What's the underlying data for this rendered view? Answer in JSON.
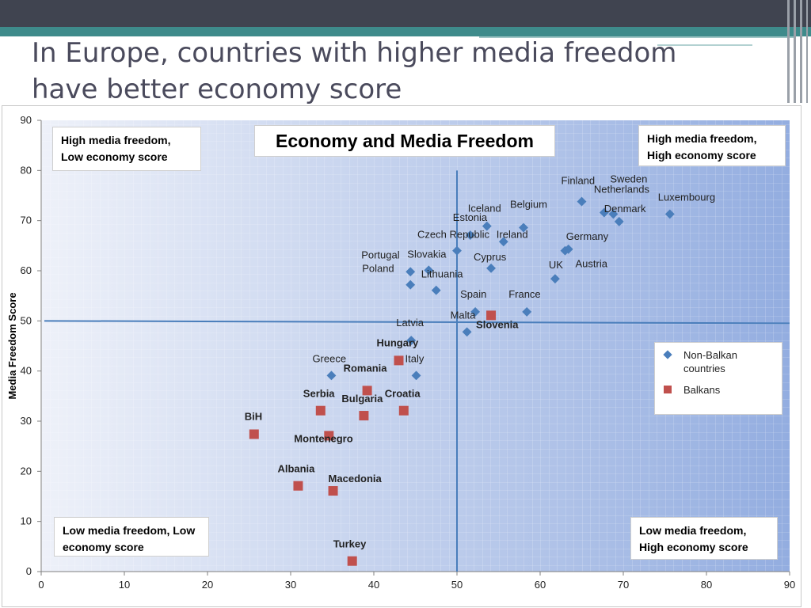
{
  "slide": {
    "title": "In Europe, countries with higher media freedom have better economy score"
  },
  "colors": {
    "non_balkan": "#4a7ebb",
    "balkan": "#c0504d",
    "quadrant_lines": "#4a7ebb",
    "plot_bg_left": "#eef1f9",
    "plot_bg_right": "#93ade0"
  },
  "chart_data": {
    "type": "scatter",
    "title": "Economy and Media Freedom",
    "xlabel": "",
    "ylabel": "Media Freedom Score",
    "xlim": [
      0,
      90
    ],
    "ylim": [
      0,
      90
    ],
    "xticks": [
      0,
      10,
      20,
      30,
      40,
      50,
      60,
      70,
      80,
      90
    ],
    "yticks": [
      0,
      10,
      20,
      30,
      40,
      50,
      60,
      70,
      80,
      90
    ],
    "grid": true,
    "reference_lines": {
      "x": 50,
      "y": 50
    },
    "quadrants": {
      "top_left": "High media freedom, Low economy score",
      "top_right": "High media freedom, High economy score",
      "bottom_left": "Low media freedom, Low economy score",
      "bottom_right": "Low media freedom, High economy score"
    },
    "legend": {
      "placement": "right",
      "entries": [
        "Non-Balkan countries",
        "Balkans"
      ]
    },
    "series": [
      {
        "name": "Non-Balkan countries",
        "marker": "diamond",
        "points": [
          {
            "label": "Sweden",
            "x": 68.8,
            "y": 71.3
          },
          {
            "label": "Finland",
            "x": 65.0,
            "y": 73.8
          },
          {
            "label": "Netherlands",
            "x": 67.7,
            "y": 71.6
          },
          {
            "label": "Denmark",
            "x": 69.5,
            "y": 69.8
          },
          {
            "label": "Luxembourg",
            "x": 75.6,
            "y": 71.3
          },
          {
            "label": "Belgium",
            "x": 58.0,
            "y": 68.6
          },
          {
            "label": "Iceland",
            "x": 53.6,
            "y": 68.9
          },
          {
            "label": "Estonia",
            "x": 51.6,
            "y": 67.1
          },
          {
            "label": "Czech Republic",
            "x": 50.0,
            "y": 64.0
          },
          {
            "label": "Ireland",
            "x": 55.6,
            "y": 65.8
          },
          {
            "label": "Germany",
            "x": 63.4,
            "y": 64.3
          },
          {
            "label": "Austria",
            "x": 63.0,
            "y": 64.0
          },
          {
            "label": "Cyprus",
            "x": 54.1,
            "y": 60.5
          },
          {
            "label": "Slovakia",
            "x": 46.6,
            "y": 60.1
          },
          {
            "label": "Portugal",
            "x": 44.4,
            "y": 59.8
          },
          {
            "label": "Poland",
            "x": 44.4,
            "y": 57.2
          },
          {
            "label": "Lithuania",
            "x": 47.5,
            "y": 56.1
          },
          {
            "label": "UK",
            "x": 61.8,
            "y": 58.4
          },
          {
            "label": "Spain",
            "x": 52.2,
            "y": 51.8
          },
          {
            "label": "France",
            "x": 58.4,
            "y": 51.8
          },
          {
            "label": "Malta",
            "x": 51.2,
            "y": 47.8
          },
          {
            "label": "Latvia",
            "x": 44.5,
            "y": 46.1
          },
          {
            "label": "Greece",
            "x": 34.9,
            "y": 39.1
          },
          {
            "label": "Italy",
            "x": 45.1,
            "y": 39.1
          }
        ]
      },
      {
        "name": "Balkans",
        "marker": "square",
        "points": [
          {
            "label": "Slovenia",
            "x": 54.1,
            "y": 51.1
          },
          {
            "label": "Hungary",
            "x": 43.0,
            "y": 42.1
          },
          {
            "label": "Romania",
            "x": 39.2,
            "y": 36.1
          },
          {
            "label": "Croatia",
            "x": 43.6,
            "y": 32.1
          },
          {
            "label": "Bulgaria",
            "x": 38.8,
            "y": 31.1
          },
          {
            "label": "Serbia",
            "x": 33.6,
            "y": 32.1
          },
          {
            "label": "Montenegro",
            "x": 34.6,
            "y": 27.1
          },
          {
            "label": "BiH",
            "x": 25.6,
            "y": 27.4
          },
          {
            "label": "Albania",
            "x": 30.9,
            "y": 17.1
          },
          {
            "label": "Macedonia",
            "x": 35.1,
            "y": 16.1
          },
          {
            "label": "Turkey",
            "x": 37.4,
            "y": 2.1
          }
        ]
      }
    ]
  }
}
